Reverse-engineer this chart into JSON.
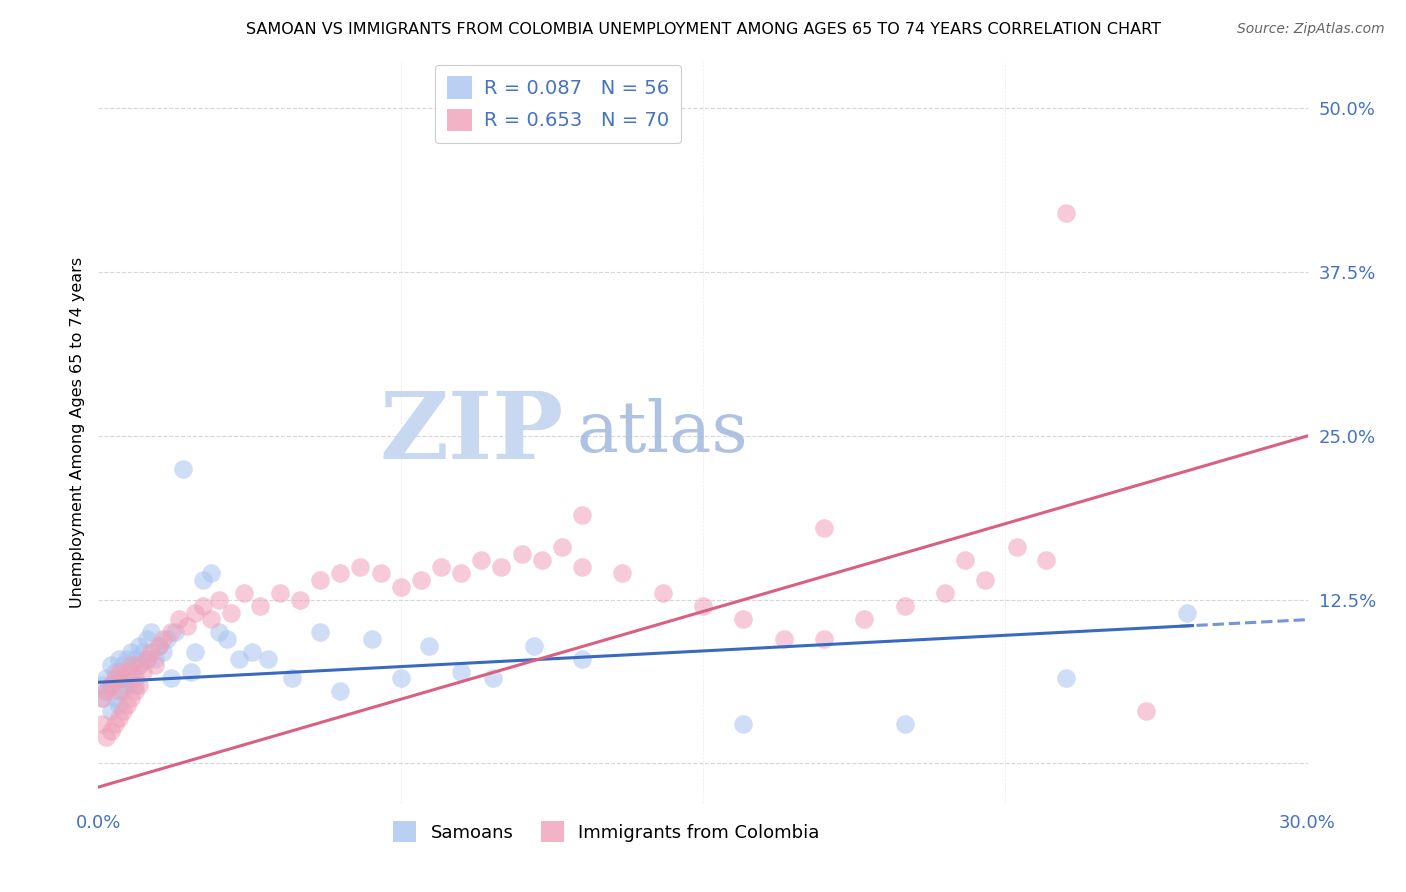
{
  "title": "SAMOAN VS IMMIGRANTS FROM COLOMBIA UNEMPLOYMENT AMONG AGES 65 TO 74 YEARS CORRELATION CHART",
  "source": "Source: ZipAtlas.com",
  "ylabel": "Unemployment Among Ages 65 to 74 years",
  "xmin": 0.0,
  "xmax": 0.3,
  "ymin": -0.03,
  "ymax": 0.535,
  "series1_name": "Samoans",
  "series1_color": "#a8c4f0",
  "series1_R": 0.087,
  "series1_N": 56,
  "series2_name": "Immigrants from Colombia",
  "series2_color": "#f0a0b8",
  "series2_R": 0.653,
  "series2_N": 70,
  "samoans_x": [
    0.001,
    0.001,
    0.002,
    0.002,
    0.003,
    0.003,
    0.003,
    0.004,
    0.004,
    0.005,
    0.005,
    0.005,
    0.006,
    0.006,
    0.007,
    0.007,
    0.008,
    0.008,
    0.009,
    0.009,
    0.01,
    0.01,
    0.011,
    0.012,
    0.012,
    0.013,
    0.014,
    0.015,
    0.016,
    0.017,
    0.018,
    0.019,
    0.021,
    0.023,
    0.024,
    0.026,
    0.028,
    0.03,
    0.032,
    0.035,
    0.038,
    0.042,
    0.048,
    0.055,
    0.06,
    0.068,
    0.075,
    0.082,
    0.09,
    0.098,
    0.108,
    0.12,
    0.16,
    0.2,
    0.24,
    0.27
  ],
  "samoans_y": [
    0.05,
    0.06,
    0.055,
    0.065,
    0.04,
    0.06,
    0.075,
    0.05,
    0.07,
    0.045,
    0.065,
    0.08,
    0.055,
    0.075,
    0.06,
    0.08,
    0.07,
    0.085,
    0.06,
    0.08,
    0.075,
    0.09,
    0.085,
    0.095,
    0.08,
    0.1,
    0.08,
    0.09,
    0.085,
    0.095,
    0.065,
    0.1,
    0.225,
    0.07,
    0.085,
    0.14,
    0.145,
    0.1,
    0.095,
    0.08,
    0.085,
    0.08,
    0.065,
    0.1,
    0.055,
    0.095,
    0.065,
    0.09,
    0.07,
    0.065,
    0.09,
    0.08,
    0.03,
    0.03,
    0.065,
    0.115
  ],
  "colombia_x": [
    0.001,
    0.001,
    0.002,
    0.002,
    0.003,
    0.003,
    0.004,
    0.004,
    0.005,
    0.005,
    0.005,
    0.006,
    0.006,
    0.007,
    0.007,
    0.008,
    0.008,
    0.009,
    0.009,
    0.01,
    0.01,
    0.011,
    0.012,
    0.013,
    0.014,
    0.015,
    0.016,
    0.018,
    0.02,
    0.022,
    0.024,
    0.026,
    0.028,
    0.03,
    0.033,
    0.036,
    0.04,
    0.045,
    0.05,
    0.055,
    0.06,
    0.065,
    0.07,
    0.075,
    0.08,
    0.085,
    0.09,
    0.095,
    0.1,
    0.105,
    0.11,
    0.115,
    0.12,
    0.13,
    0.14,
    0.15,
    0.16,
    0.17,
    0.18,
    0.19,
    0.2,
    0.21,
    0.215,
    0.22,
    0.228,
    0.235,
    0.18,
    0.12,
    0.24,
    0.26
  ],
  "colombia_y": [
    0.03,
    0.05,
    0.02,
    0.055,
    0.025,
    0.06,
    0.03,
    0.065,
    0.035,
    0.055,
    0.07,
    0.04,
    0.065,
    0.045,
    0.07,
    0.05,
    0.075,
    0.055,
    0.065,
    0.06,
    0.075,
    0.07,
    0.08,
    0.085,
    0.075,
    0.09,
    0.095,
    0.1,
    0.11,
    0.105,
    0.115,
    0.12,
    0.11,
    0.125,
    0.115,
    0.13,
    0.12,
    0.13,
    0.125,
    0.14,
    0.145,
    0.15,
    0.145,
    0.135,
    0.14,
    0.15,
    0.145,
    0.155,
    0.15,
    0.16,
    0.155,
    0.165,
    0.15,
    0.145,
    0.13,
    0.12,
    0.11,
    0.095,
    0.095,
    0.11,
    0.12,
    0.13,
    0.155,
    0.14,
    0.165,
    0.155,
    0.18,
    0.19,
    0.42,
    0.04
  ],
  "grid_color": "#cccccc",
  "bg_color": "#ffffff",
  "line1_color": "#3a6abf",
  "line2_color": "#d96080",
  "title_fontsize": 11.5,
  "source_fontsize": 10,
  "zip_color": "#c8d8f0",
  "atlas_color": "#a8bce0",
  "watermark_fontsize": 68
}
